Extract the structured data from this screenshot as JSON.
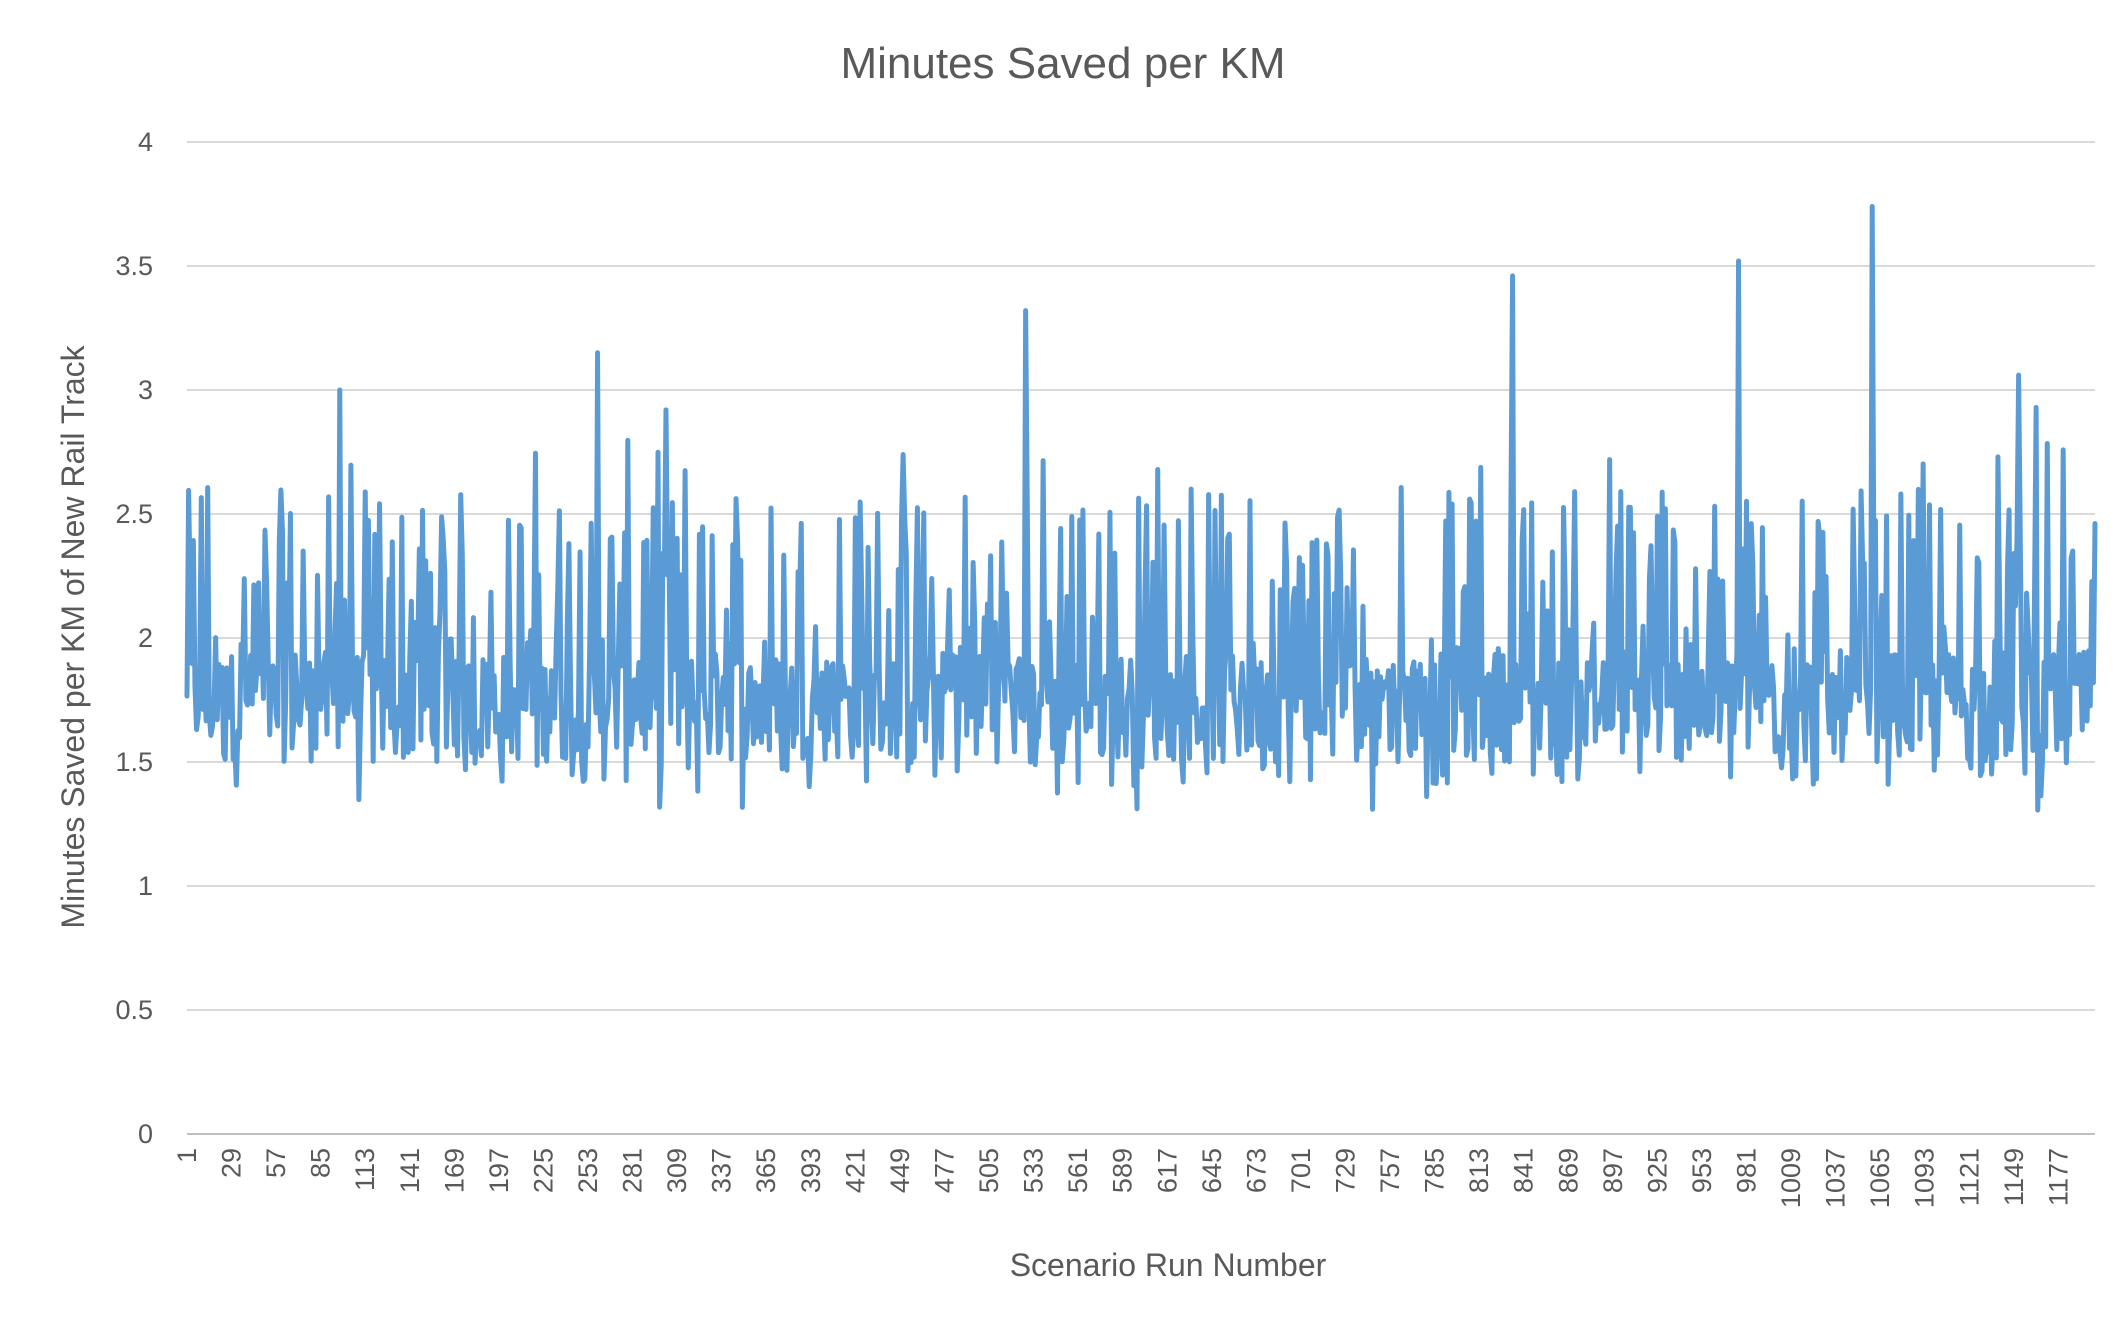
{
  "chart_data": {
    "type": "line",
    "title": "Minutes Saved per KM",
    "xlabel": "Scenario Run Number",
    "ylabel": "Minutes Saved per KM of New Rail Track",
    "ylim": [
      0,
      4
    ],
    "yticks": [
      "0",
      "0.5",
      "1",
      "1.5",
      "2",
      "2.5",
      "3",
      "3.5",
      "4"
    ],
    "xrange": [
      1,
      1200
    ],
    "xticks": [
      "1",
      "29",
      "57",
      "85",
      "113",
      "141",
      "169",
      "197",
      "225",
      "253",
      "281",
      "309",
      "337",
      "365",
      "393",
      "421",
      "449",
      "477",
      "505",
      "533",
      "561",
      "589",
      "617",
      "645",
      "673",
      "701",
      "729",
      "757",
      "785",
      "813",
      "841",
      "869",
      "897",
      "925",
      "953",
      "981",
      "1009",
      "1037",
      "1065",
      "1093",
      "1121",
      "1149",
      "1177"
    ],
    "grid": true,
    "legend": "none",
    "series_color": "#5b9bd5",
    "series": [
      {
        "values_note": "approximate value envelope read from chart; 1200 runs fluctuating ~1.3–2.8 with peaks",
        "peaks": [
          {
            "x": 97,
            "y": 3.0
          },
          {
            "x": 259,
            "y": 3.15
          },
          {
            "x": 302,
            "y": 2.92
          },
          {
            "x": 528,
            "y": 3.32
          },
          {
            "x": 834,
            "y": 3.46
          },
          {
            "x": 976,
            "y": 3.52
          },
          {
            "x": 1060,
            "y": 3.74
          },
          {
            "x": 1152,
            "y": 3.06
          },
          {
            "x": 1163,
            "y": 2.93
          }
        ],
        "min_observed": 1.27,
        "typical_range": [
          1.4,
          2.6
        ]
      }
    ]
  }
}
